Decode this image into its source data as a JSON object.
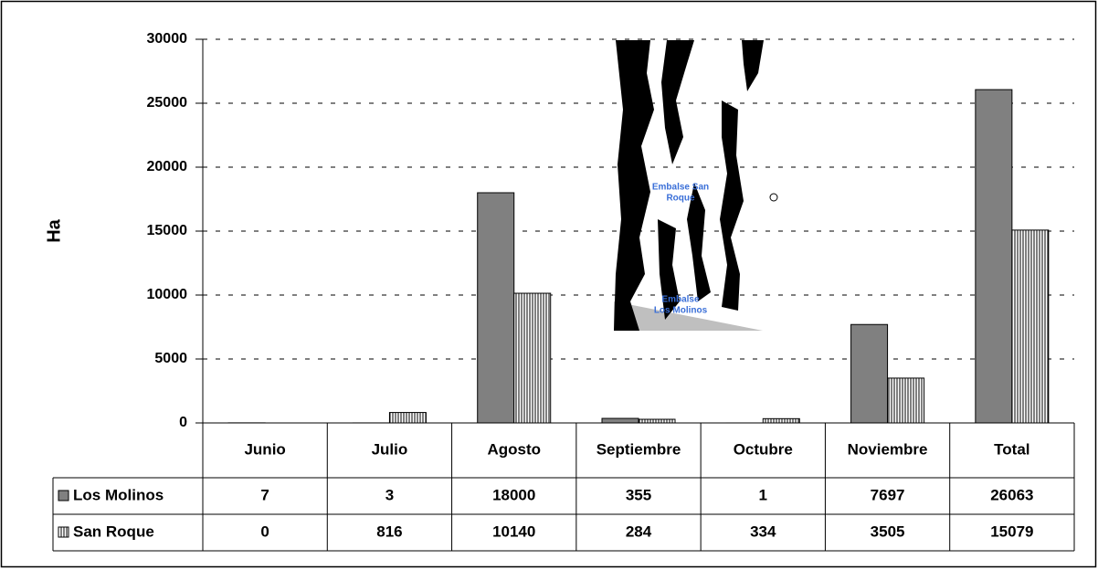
{
  "chart_data": {
    "type": "bar",
    "y_label": "Ha",
    "categories": [
      "Junio",
      "Julio",
      "Agosto",
      "Septiembre",
      "Octubre",
      "Noviembre",
      "Total"
    ],
    "series": [
      {
        "name": "Los Molinos",
        "color": "#808080",
        "values": [
          7,
          3,
          18000,
          355,
          1,
          7697,
          26063
        ]
      },
      {
        "name": "San Roque",
        "color": "#ffffff",
        "pattern": "vertical-stripes",
        "values": [
          0,
          816,
          10140,
          284,
          334,
          3505,
          15079
        ]
      }
    ],
    "ylim": [
      0,
      30000
    ],
    "yticks": [
      0,
      5000,
      10000,
      15000,
      20000,
      25000,
      30000
    ],
    "grid": true,
    "annotations": [
      [
        "Embalse San",
        "Roque"
      ],
      [
        "Embalse",
        "Los Molinos"
      ]
    ]
  }
}
